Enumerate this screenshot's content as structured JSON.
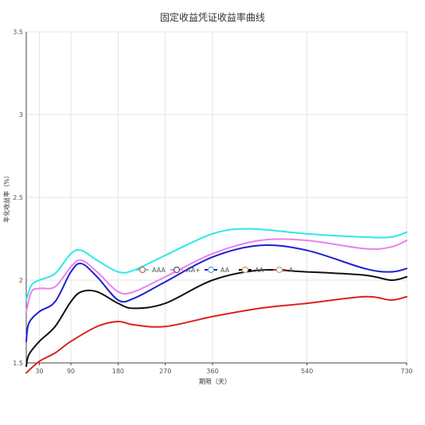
{
  "chart_data": {
    "type": "line",
    "title": "固定收益凭证收益率曲线",
    "xlabel": "期限（天）",
    "ylabel": "年化收益率（%）",
    "xticks": [
      30,
      90,
      180,
      270,
      360,
      540,
      730
    ],
    "ytick_labels": [
      "1.5",
      "2",
      "2.5",
      "3",
      "3.5"
    ],
    "xlim": [
      5,
      730
    ],
    "ylim": [
      1.5,
      3.5
    ],
    "grid": true,
    "legend": {
      "placement": "center"
    },
    "series": [
      {
        "name": "AAA",
        "color": "#2ee8e8",
        "marker_color": "#e05050",
        "points": [
          [
            5,
            1.88
          ],
          [
            15,
            1.97
          ],
          [
            30,
            2.0
          ],
          [
            60,
            2.04
          ],
          [
            90,
            2.16
          ],
          [
            110,
            2.18
          ],
          [
            140,
            2.12
          ],
          [
            180,
            2.05
          ],
          [
            210,
            2.06
          ],
          [
            270,
            2.15
          ],
          [
            360,
            2.28
          ],
          [
            430,
            2.31
          ],
          [
            540,
            2.28
          ],
          [
            650,
            2.26
          ],
          [
            700,
            2.26
          ],
          [
            730,
            2.29
          ]
        ]
      },
      {
        "name": "AA+",
        "color": "#e882ea",
        "marker_color": "#555555",
        "points": [
          [
            5,
            1.81
          ],
          [
            15,
            1.93
          ],
          [
            30,
            1.95
          ],
          [
            60,
            1.96
          ],
          [
            90,
            2.08
          ],
          [
            110,
            2.12
          ],
          [
            140,
            2.05
          ],
          [
            180,
            1.93
          ],
          [
            210,
            1.93
          ],
          [
            270,
            2.02
          ],
          [
            360,
            2.16
          ],
          [
            450,
            2.24
          ],
          [
            540,
            2.24
          ],
          [
            650,
            2.19
          ],
          [
            700,
            2.2
          ],
          [
            730,
            2.24
          ]
        ]
      },
      {
        "name": "AA",
        "color": "#1f1fd0",
        "marker_color": "#66aacc",
        "points": [
          [
            5,
            1.63
          ],
          [
            10,
            1.74
          ],
          [
            30,
            1.81
          ],
          [
            60,
            1.87
          ],
          [
            90,
            2.05
          ],
          [
            110,
            2.1
          ],
          [
            140,
            2.02
          ],
          [
            180,
            1.88
          ],
          [
            210,
            1.89
          ],
          [
            270,
            1.99
          ],
          [
            360,
            2.14
          ],
          [
            450,
            2.21
          ],
          [
            540,
            2.18
          ],
          [
            650,
            2.07
          ],
          [
            700,
            2.05
          ],
          [
            730,
            2.07
          ]
        ]
      },
      {
        "name": "AA-",
        "color": "#111111",
        "marker_color": "#cc9966",
        "points": [
          [
            5,
            1.48
          ],
          [
            10,
            1.55
          ],
          [
            30,
            1.63
          ],
          [
            60,
            1.72
          ],
          [
            90,
            1.87
          ],
          [
            110,
            1.93
          ],
          [
            140,
            1.93
          ],
          [
            180,
            1.86
          ],
          [
            210,
            1.83
          ],
          [
            270,
            1.86
          ],
          [
            360,
            2.0
          ],
          [
            450,
            2.06
          ],
          [
            540,
            2.05
          ],
          [
            650,
            2.03
          ],
          [
            700,
            2.0
          ],
          [
            730,
            2.02
          ]
        ]
      },
      {
        "name": "A",
        "color": "#dd2020",
        "marker_color": "#aaaaaa",
        "points": [
          [
            5,
            1.44
          ],
          [
            30,
            1.51
          ],
          [
            60,
            1.56
          ],
          [
            90,
            1.63
          ],
          [
            140,
            1.72
          ],
          [
            180,
            1.75
          ],
          [
            210,
            1.73
          ],
          [
            270,
            1.72
          ],
          [
            360,
            1.78
          ],
          [
            450,
            1.83
          ],
          [
            540,
            1.86
          ],
          [
            650,
            1.9
          ],
          [
            700,
            1.88
          ],
          [
            730,
            1.9
          ]
        ]
      }
    ]
  }
}
